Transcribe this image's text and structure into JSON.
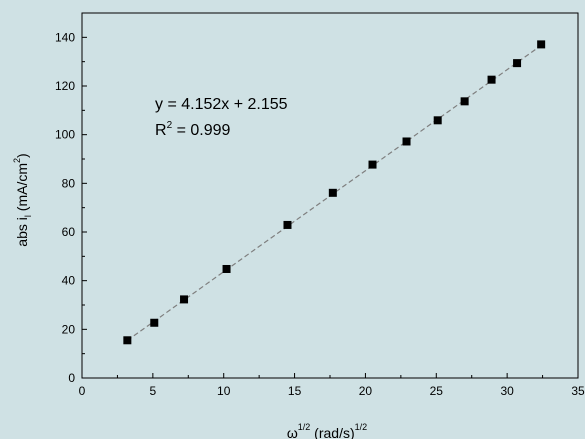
{
  "chart_data": {
    "type": "scatter",
    "xlabel": "ω",
    "xlabel_sup": "1/2",
    "xlabel_unit": " (rad/s)",
    "xlabel_unit_sup": "1/2",
    "ylabel": "abs i",
    "ylabel_sub": "l",
    "ylabel_unit": " (mA/cm",
    "ylabel_unit_sup": "2",
    "ylabel_unit_close": ")",
    "xlim": [
      0,
      35
    ],
    "ylim": [
      0,
      150
    ],
    "xticks": [
      0,
      5,
      10,
      15,
      20,
      25,
      30,
      35
    ],
    "yticks": [
      0,
      20,
      40,
      60,
      80,
      100,
      120,
      140
    ],
    "grid": false,
    "marker_color": "#000000",
    "fit_color": "#7f7f7f",
    "series": [
      {
        "x": [
          3.2,
          5.1,
          7.2,
          10.2,
          14.5,
          17.7,
          20.5,
          22.9,
          25.1,
          27.0,
          28.9,
          30.7,
          32.4
        ],
        "y": [
          15.5,
          22.7,
          32.3,
          44.8,
          62.9,
          76.1,
          87.7,
          97.2,
          105.9,
          113.7,
          122.6,
          129.4,
          137.1
        ]
      }
    ],
    "fit_line": {
      "slope": 4.152,
      "intercept": 2.155,
      "x_range": [
        3.2,
        32.4
      ]
    },
    "annotation": {
      "equation": "y = 4.152x + 2.155",
      "r2_prefix": "R",
      "r2_sup": "2",
      "r2_value": " = 0.999"
    }
  }
}
